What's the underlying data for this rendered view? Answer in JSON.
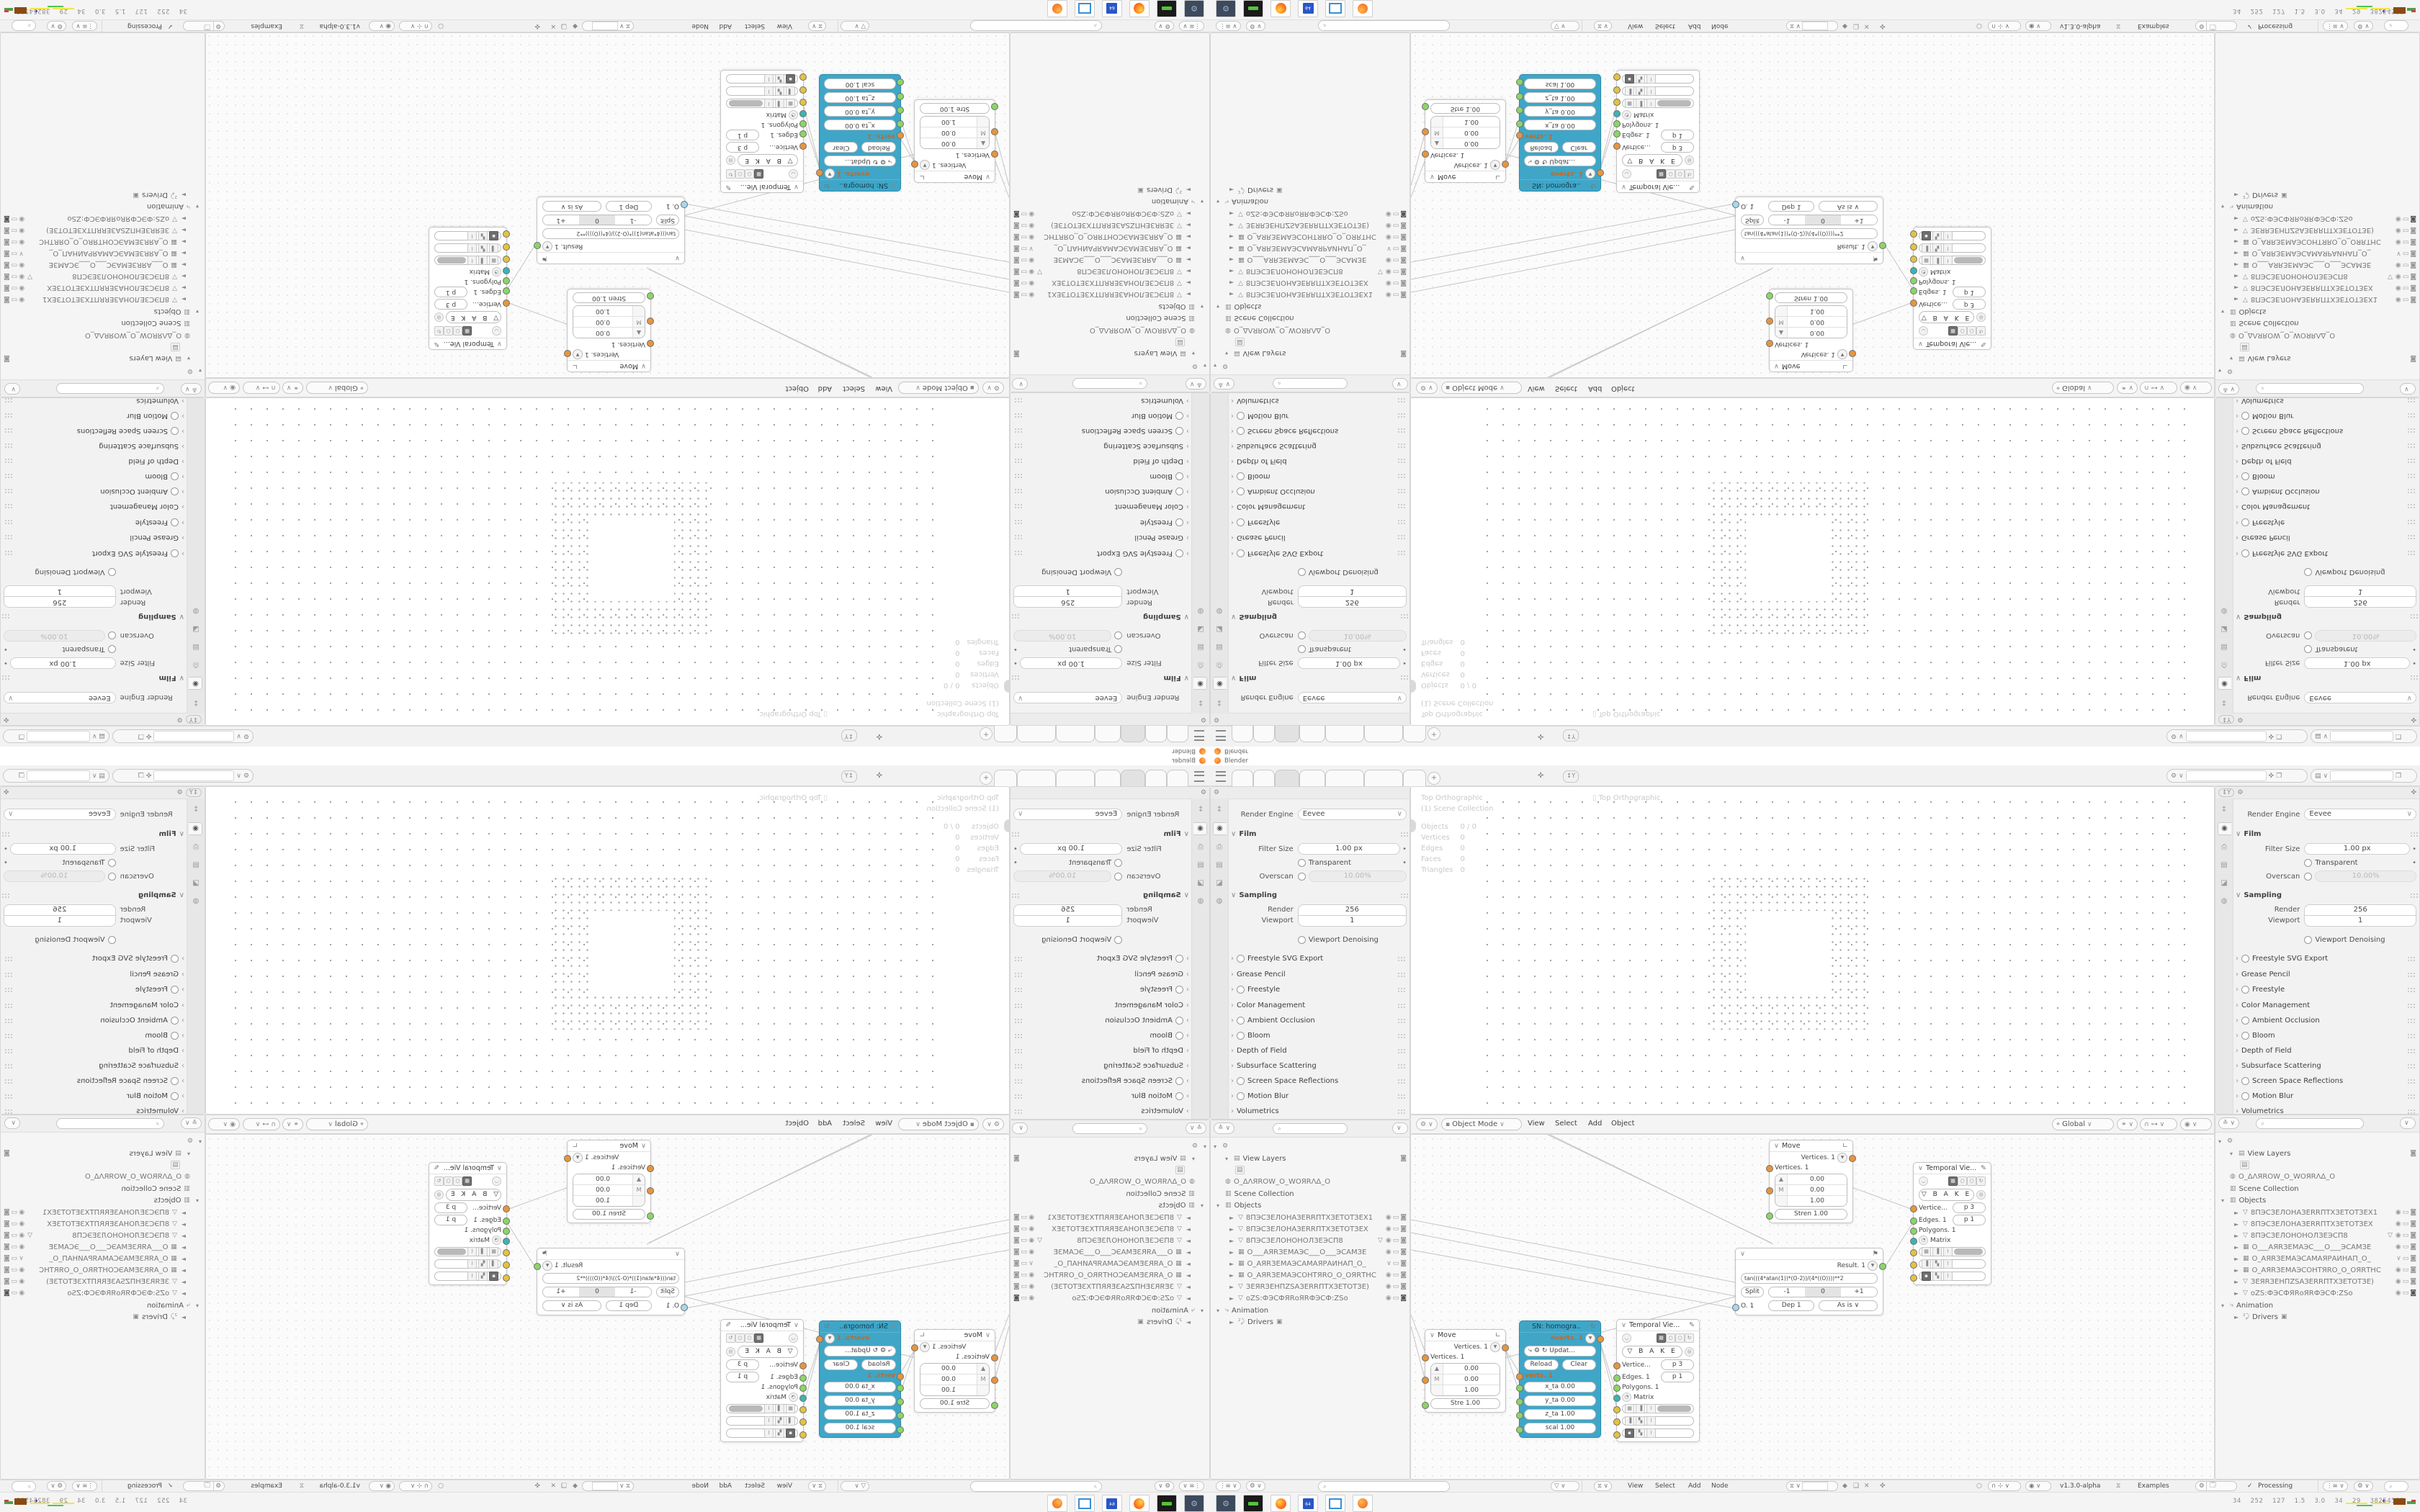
{
  "window": {
    "title": "Blender"
  },
  "tabrow": {
    "plus": "+"
  },
  "props": {
    "render_engine_label": "Render Engine",
    "render_engine_value": "Eevee",
    "film_title": "Film",
    "filter_size_label": "Filter Size",
    "filter_size_value": "1.00 px",
    "transparent_label": "Transparent",
    "overscan_label": "Overscan",
    "overscan_value": "10.00%",
    "sampling_title": "Sampling",
    "render_label": "Render",
    "render_value": "256",
    "viewport_label": "Viewport",
    "viewport_value": "1",
    "denoising_label": "Viewport Denoising",
    "sections": [
      {
        "label": "Freestyle SVG Export"
      },
      {
        "label": "Grease Pencil"
      },
      {
        "label": "Freestyle"
      },
      {
        "label": "Color Management"
      },
      {
        "label": "Ambient Occlusion"
      },
      {
        "label": "Bloom"
      },
      {
        "label": "Depth of Field"
      },
      {
        "label": "Subsurface Scattering"
      },
      {
        "label": "Screen Space Reflections"
      },
      {
        "label": "Motion Blur"
      },
      {
        "label": "Volumetrics"
      }
    ]
  },
  "viewport": {
    "overlay_line1": "Top Orthographic",
    "overlay_line2": "(1) Scene Collection",
    "stats": [
      {
        "k": "Objects",
        "v": "0 / 0"
      },
      {
        "k": "Vertices",
        "v": "0"
      },
      {
        "k": "Edges",
        "v": "0"
      },
      {
        "k": "Faces",
        "v": "0"
      },
      {
        "k": "Triangles",
        "v": "0"
      }
    ],
    "overlay_secondary": "Top Orthographic",
    "mode": "Object Mode",
    "menus": [
      "View",
      "Select",
      "Add",
      "Object"
    ],
    "orientation": "Global"
  },
  "outliner": {
    "view_layers": "View Layers",
    "root_name": "O_ΔΛЯROW_O_WOЯRΛΔ_O",
    "scene_collection": "Scene Collection",
    "objects_label": "Objects",
    "objects": [
      "8ПЭСЗЕЛОНАЗЕRRПТХЗЕТОТЗЕХ1",
      "8ПЭСЗЕЛОНАЗЕRRПТХЗЕТОТЗЕХ",
      "8ПЭСЗЕЛОНОНОЛЗЕЭСП8",
      "O___AЯRЗЕМАЭС___O___ЭСАМЗЕ",
      "O_AЯRЗЕМАЭСАМАЯРАИНАП_O_",
      "O_AЯRЗЕМАЭСОНТЯRO_O_ОЯRТНС",
      "ЗЕЯRЗЕНПZSАЗЕRRПТХЗЕТОТЗЕ)",
      "оZS:ФЭСФЯRоЯRФЭСФ:ZSо"
    ],
    "animation": "Animation",
    "drivers": "Drivers"
  },
  "nodes": {
    "move_top": {
      "title": "Move",
      "out": "Vertices. 1",
      "in": "Vertices. 1",
      "x": "0.00",
      "y": "0.00",
      "z": "1.00",
      "axis": "M",
      "strength": "Stren  1.00"
    },
    "move_bottom_strength": "Stre  1.00",
    "sn": {
      "title": "SN: homogra..",
      "out": "overts. 1",
      "update": "Updat...",
      "reload": "Reload",
      "clear": "Clear",
      "in": "verts. 1",
      "f1": "x_ta  0.00",
      "f2": "y_ta  0.00",
      "f3": "z_ta  1.00",
      "f4": "scal  1.00"
    },
    "temporal": {
      "title": "Temporal Vie...",
      "bake": "B A K E",
      "vertices": "Vertice...",
      "vertices_val": "p  3",
      "edges": "Edges. 1",
      "edges_val": "p  1",
      "polygons": "Polygons. 1",
      "matrix": "Matrix"
    },
    "formula": {
      "out": "Result. 1",
      "expr": "tan(((4*atan(1))*(O-2))/(4*((O))))**2",
      "split": "Split",
      "m1": "-1",
      "m2": "0",
      "m3": "+1",
      "o": "O. 1",
      "dep": "Dep  1",
      "asis": "As is"
    }
  },
  "node_footer": {
    "menus": [
      "View",
      "Select",
      "Add",
      "Node"
    ],
    "version": "v1.3.0-alpha",
    "examples": "Examples",
    "processing": "Processing"
  },
  "taskbar": {
    "stats": "34    252    127    1.5    3.0    34    29    38254577"
  },
  "colors": {
    "accent_cyan": "#3fa6c8",
    "socket_orange": "#e6953f",
    "socket_green": "#8bd567",
    "socket_teal": "#3cb4b4",
    "socket_yellow": "#e3c243",
    "blender_orange": "#f5792a"
  }
}
